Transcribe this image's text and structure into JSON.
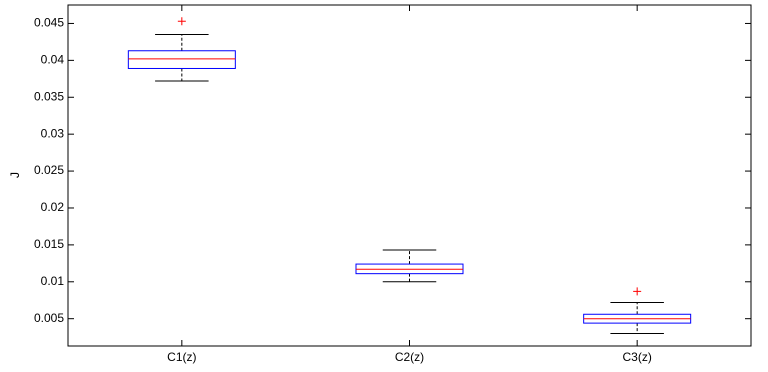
{
  "chart_data": {
    "type": "boxplot",
    "title": "",
    "xlabel": "",
    "ylabel": "J",
    "ylim": [
      0.0013,
      0.0475
    ],
    "yticks": [
      "0.005",
      "0.01",
      "0.015",
      "0.02",
      "0.025",
      "0.03",
      "0.035",
      "0.04",
      "0.045"
    ],
    "categories": [
      "C1(z)",
      "C2(z)",
      "C3(z)"
    ],
    "boxes": [
      {
        "label": "C1(z)",
        "whisker_low": 0.0372,
        "q1": 0.0389,
        "median": 0.0402,
        "q3": 0.0413,
        "whisker_high": 0.0435,
        "outliers": [
          0.0453
        ]
      },
      {
        "label": "C2(z)",
        "whisker_low": 0.01,
        "q1": 0.0111,
        "median": 0.0117,
        "q3": 0.0124,
        "whisker_high": 0.0143,
        "outliers": []
      },
      {
        "label": "C3(z)",
        "whisker_low": 0.003,
        "q1": 0.0044,
        "median": 0.005,
        "q3": 0.0056,
        "whisker_high": 0.0072,
        "outliers": [
          0.0087
        ]
      }
    ],
    "grid": false,
    "colors": {
      "box": "#0000ff",
      "median": "#ff0000",
      "whisker": "#000000",
      "outlier": "#ff0000"
    }
  }
}
